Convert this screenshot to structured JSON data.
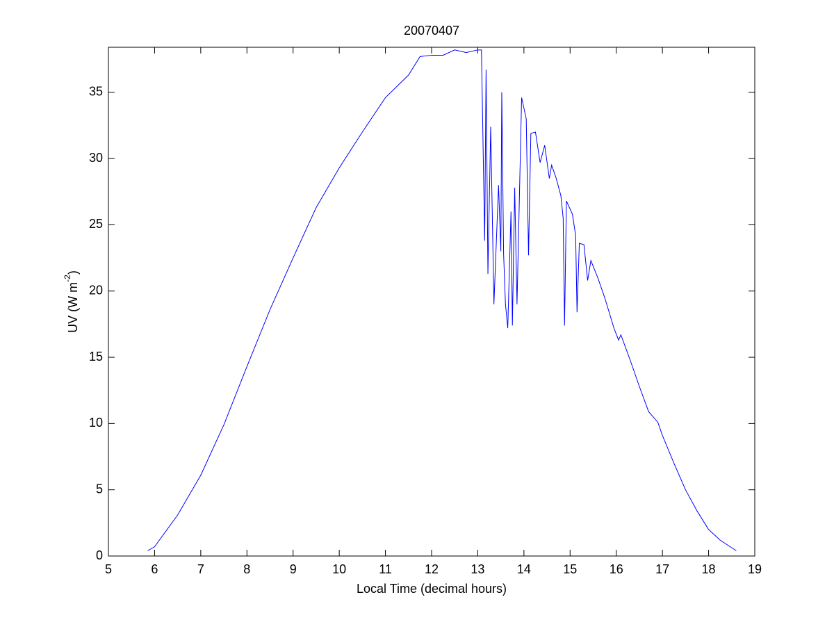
{
  "chart_data": {
    "type": "line",
    "title": "20070407",
    "xlabel": "Local Time (decimal hours)",
    "ylabel": {
      "base": "UV (W m",
      "superscript": "-2",
      "close": ")"
    },
    "xlim": [
      5,
      19
    ],
    "ylim": [
      0,
      38.4
    ],
    "xticks": [
      5,
      6,
      7,
      8,
      9,
      10,
      11,
      12,
      13,
      14,
      15,
      16,
      17,
      18,
      19
    ],
    "yticks": [
      0,
      5,
      10,
      15,
      20,
      25,
      30,
      35
    ],
    "series": [
      {
        "color": "#0000ff",
        "x": [
          5.85,
          6.0,
          6.5,
          7.0,
          7.5,
          8.0,
          8.5,
          9.0,
          9.5,
          10.0,
          10.5,
          11.0,
          11.5,
          11.75,
          12.0,
          12.25,
          12.5,
          12.75,
          13.0,
          13.08,
          13.15,
          13.18,
          13.22,
          13.28,
          13.35,
          13.45,
          13.5,
          13.52,
          13.56,
          13.6,
          13.65,
          13.72,
          13.75,
          13.8,
          13.85,
          13.95,
          14.05,
          14.1,
          14.15,
          14.25,
          14.35,
          14.45,
          14.55,
          14.6,
          14.7,
          14.8,
          14.85,
          14.88,
          14.92,
          15.05,
          15.12,
          15.15,
          15.2,
          15.3,
          15.38,
          15.45,
          15.6,
          15.75,
          15.95,
          16.05,
          16.1,
          16.3,
          16.5,
          16.7,
          16.9,
          17.0,
          17.25,
          17.5,
          17.75,
          18.0,
          18.25,
          18.6
        ],
        "values": [
          0.4,
          0.7,
          3.1,
          6.1,
          9.9,
          14.3,
          18.6,
          22.5,
          26.3,
          29.3,
          32.0,
          34.6,
          36.3,
          37.7,
          37.8,
          37.8,
          38.2,
          38.0,
          38.2,
          38.2,
          23.8,
          36.7,
          21.3,
          32.4,
          19.0,
          28.0,
          23.0,
          35.0,
          22.8,
          19.0,
          17.2,
          26.0,
          17.4,
          27.8,
          19.0,
          34.6,
          33.0,
          22.7,
          31.9,
          32.0,
          29.7,
          31.0,
          28.5,
          29.5,
          28.5,
          27.2,
          25.5,
          17.4,
          26.8,
          25.8,
          24.2,
          18.4,
          23.6,
          23.5,
          20.8,
          22.3,
          21.0,
          19.5,
          17.2,
          16.3,
          16.7,
          14.8,
          12.8,
          10.9,
          10.1,
          9.1,
          7.0,
          5.0,
          3.4,
          2.0,
          1.2,
          0.4
        ]
      }
    ]
  }
}
